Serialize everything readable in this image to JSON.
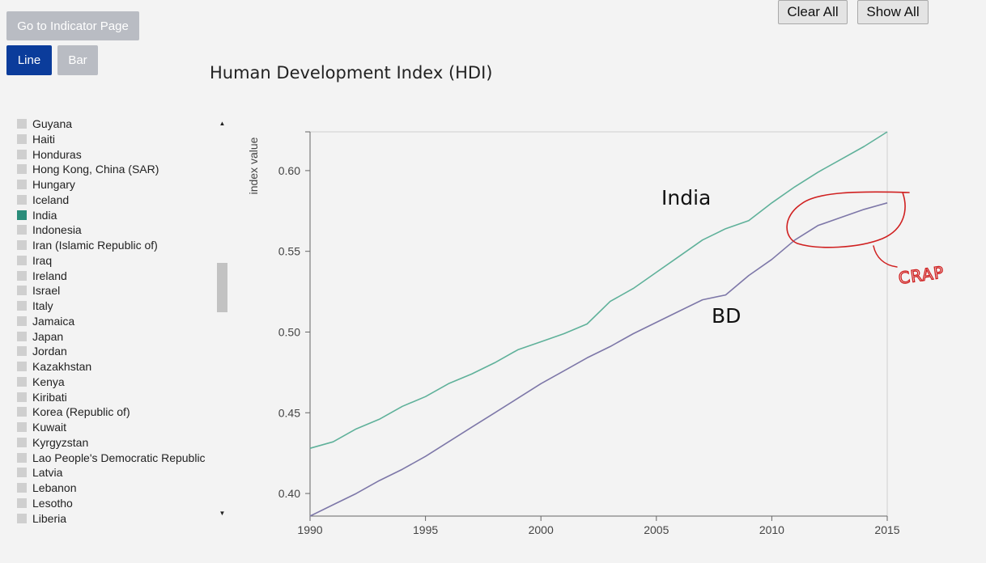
{
  "toolbar": {
    "indicator_label": "Go to Indicator Page",
    "line_label": "Line",
    "bar_label": "Bar",
    "clear_label": "Clear All",
    "show_label": "Show All"
  },
  "countries": [
    {
      "name": "Guyana",
      "selected": false
    },
    {
      "name": "Haiti",
      "selected": false
    },
    {
      "name": "Honduras",
      "selected": false
    },
    {
      "name": "Hong Kong, China (SAR)",
      "selected": false
    },
    {
      "name": "Hungary",
      "selected": false
    },
    {
      "name": "Iceland",
      "selected": false
    },
    {
      "name": "India",
      "selected": true
    },
    {
      "name": "Indonesia",
      "selected": false
    },
    {
      "name": "Iran (Islamic Republic of)",
      "selected": false
    },
    {
      "name": "Iraq",
      "selected": false
    },
    {
      "name": "Ireland",
      "selected": false
    },
    {
      "name": "Israel",
      "selected": false
    },
    {
      "name": "Italy",
      "selected": false
    },
    {
      "name": "Jamaica",
      "selected": false
    },
    {
      "name": "Japan",
      "selected": false
    },
    {
      "name": "Jordan",
      "selected": false
    },
    {
      "name": "Kazakhstan",
      "selected": false
    },
    {
      "name": "Kenya",
      "selected": false
    },
    {
      "name": "Kiribati",
      "selected": false
    },
    {
      "name": "Korea (Republic of)",
      "selected": false
    },
    {
      "name": "Kuwait",
      "selected": false
    },
    {
      "name": "Kyrgyzstan",
      "selected": false
    },
    {
      "name": "Lao People's Democratic Republic",
      "selected": false
    },
    {
      "name": "Latvia",
      "selected": false
    },
    {
      "name": "Lebanon",
      "selected": false
    },
    {
      "name": "Lesotho",
      "selected": false
    },
    {
      "name": "Liberia",
      "selected": false
    }
  ],
  "colors": {
    "selected_swatch": "#2a8c7a",
    "unselected_swatch": "#cfcfcf",
    "series_india": "#5fb19a",
    "series_bd": "#7d77a8",
    "annotation": "#d02020"
  },
  "annotations": {
    "india_label": "India",
    "bd_label": "BD",
    "scrawl": "CRAP"
  },
  "chart_data": {
    "type": "line",
    "title": "Human Development Index (HDI)",
    "xlabel": "",
    "ylabel": "index value",
    "xlim": [
      1990,
      2015
    ],
    "ylim": [
      0.386,
      0.624
    ],
    "xticks": [
      1990,
      1995,
      2000,
      2005,
      2010,
      2015
    ],
    "yticks": [
      0.4,
      0.45,
      0.5,
      0.55,
      0.6
    ],
    "ytick_labels": [
      "0.40",
      "0.45",
      "0.50",
      "0.55",
      "0.60"
    ],
    "grid": false,
    "x": [
      1990,
      1991,
      1992,
      1993,
      1994,
      1995,
      1996,
      1997,
      1998,
      1999,
      2000,
      2001,
      2002,
      2003,
      2004,
      2005,
      2006,
      2007,
      2008,
      2009,
      2010,
      2011,
      2012,
      2013,
      2014,
      2015
    ],
    "series": [
      {
        "values": [
          0.428,
          0.432,
          0.44,
          0.446,
          0.454,
          0.46,
          0.468,
          0.474,
          0.481,
          0.489,
          0.494,
          0.499,
          0.505,
          0.519,
          0.527,
          0.537,
          0.547,
          0.557,
          0.564,
          0.569,
          0.58,
          0.59,
          0.599,
          0.607,
          0.615,
          0.624
        ]
      },
      {
        "values": [
          0.386,
          0.393,
          0.4,
          0.408,
          0.415,
          0.423,
          0.432,
          0.441,
          0.45,
          0.459,
          0.468,
          0.476,
          0.484,
          0.491,
          0.499,
          0.506,
          0.513,
          0.52,
          0.523,
          0.535,
          0.545,
          0.557,
          0.566,
          0.571,
          0.576,
          0.58
        ]
      }
    ]
  }
}
